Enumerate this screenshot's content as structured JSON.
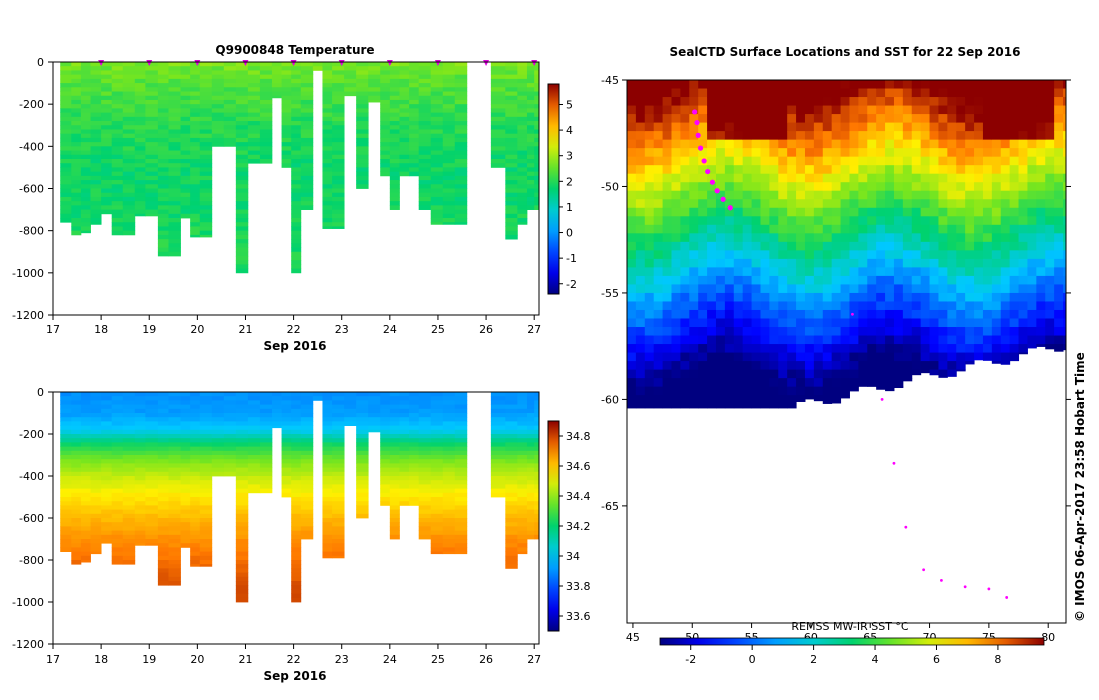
{
  "chart_data": [
    {
      "type": "heatmap",
      "title": "Q9900848  Temperature",
      "xlabel": "Sep 2016",
      "ylabel": "",
      "x_ticks": [
        17,
        18,
        19,
        20,
        21,
        22,
        23,
        24,
        25,
        26,
        27
      ],
      "y_ticks": [
        0,
        -200,
        -400,
        -600,
        -800,
        -1000,
        -1200
      ],
      "xlim": [
        17,
        27.1
      ],
      "ylim": [
        -1200,
        0
      ],
      "colorbar": {
        "min": -2.4,
        "max": 5.8,
        "ticks": [
          -2,
          -1,
          0,
          1,
          2,
          3,
          4,
          5
        ]
      },
      "profile_times": [
        17.15,
        17.38,
        17.58,
        17.78,
        18.0,
        18.22,
        18.45,
        18.7,
        18.92,
        19.18,
        19.4,
        19.65,
        19.85,
        20.05,
        20.3,
        20.55,
        20.8,
        21.05,
        21.3,
        21.55,
        21.75,
        21.95,
        22.15,
        22.4,
        22.6,
        22.8,
        23.05,
        23.3,
        23.55,
        23.8,
        24.0,
        24.2,
        24.4,
        24.6,
        24.85,
        25.1,
        25.35,
        25.6,
        25.85,
        26.1,
        26.4,
        26.65,
        26.85,
        27.0
      ],
      "profile_depths": [
        -760,
        -820,
        -810,
        -770,
        -720,
        -820,
        -820,
        -730,
        -730,
        -920,
        -920,
        -740,
        -830,
        -830,
        -400,
        -400,
        -1000,
        -480,
        -480,
        -170,
        -500,
        -1000,
        -700,
        -40,
        -790,
        -790,
        -160,
        -600,
        -190,
        -540,
        -700,
        -540,
        -540,
        -700,
        -770,
        -770,
        -770,
        0,
        0,
        -500,
        -840,
        -770,
        -700,
        -700
      ],
      "temperature_profile": {
        "depth": [
          0,
          -100,
          -200,
          -300,
          -400,
          -500,
          -600,
          -700,
          -800,
          -900,
          -1000
        ],
        "value": [
          2.7,
          2.4,
          2.2,
          2.0,
          1.9,
          1.8,
          1.8,
          1.8,
          1.9,
          1.9,
          1.9
        ]
      },
      "markers": [
        18,
        19,
        20,
        21,
        22,
        23,
        24,
        25,
        26,
        27
      ]
    },
    {
      "type": "heatmap",
      "title": "",
      "xlabel": "Sep 2016",
      "ylabel": "",
      "x_ticks": [
        17,
        18,
        19,
        20,
        21,
        22,
        23,
        24,
        25,
        26,
        27
      ],
      "y_ticks": [
        0,
        -200,
        -400,
        -600,
        -800,
        -1000,
        -1200
      ],
      "xlim": [
        17,
        27.1
      ],
      "ylim": [
        -1200,
        0
      ],
      "colorbar": {
        "min": 33.5,
        "max": 34.9,
        "ticks": [
          33.6,
          33.8,
          34,
          34.2,
          34.4,
          34.6,
          34.8
        ]
      },
      "salinity_profile": {
        "depth": [
          0,
          -100,
          -180,
          -250,
          -320,
          -400,
          -500,
          -600,
          -700,
          -800,
          -900,
          -1000
        ],
        "value": [
          33.9,
          33.92,
          34.0,
          34.22,
          34.36,
          34.46,
          34.55,
          34.62,
          34.68,
          34.73,
          34.77,
          34.8
        ]
      }
    },
    {
      "type": "heatmap",
      "title": "SealCTD Surface Locations and SST for 22 Sep 2016",
      "xlabel": "REMSS MW-IR SST °C",
      "x_ticks": [
        45,
        50,
        55,
        60,
        65,
        70,
        75,
        80
      ],
      "y_ticks": [
        -45,
        -50,
        -55,
        -60,
        -65
      ],
      "xlim": [
        44.5,
        81.5
      ],
      "ylim": [
        -70.5,
        -45
      ],
      "colorbar": {
        "min": -3,
        "max": 9.5,
        "ticks": [
          -2,
          0,
          2,
          4,
          6,
          8
        ]
      },
      "track_points": [
        [
          50.2,
          -46.5
        ],
        [
          50.4,
          -47.0
        ],
        [
          50.5,
          -47.6
        ],
        [
          50.7,
          -48.2
        ],
        [
          51.0,
          -48.8
        ],
        [
          51.3,
          -49.3
        ],
        [
          51.7,
          -49.8
        ],
        [
          52.1,
          -50.2
        ],
        [
          52.6,
          -50.6
        ],
        [
          53.2,
          -51.0
        ],
        [
          63.5,
          -56
        ],
        [
          66,
          -60
        ],
        [
          67,
          -63
        ],
        [
          68,
          -66
        ],
        [
          69.5,
          -68
        ],
        [
          71,
          -68.5
        ],
        [
          73,
          -68.8
        ],
        [
          75,
          -68.9
        ],
        [
          76.5,
          -69.3
        ]
      ]
    }
  ],
  "side_label": "© IMOS 06-Apr-2017 23:58 Hobart Time"
}
